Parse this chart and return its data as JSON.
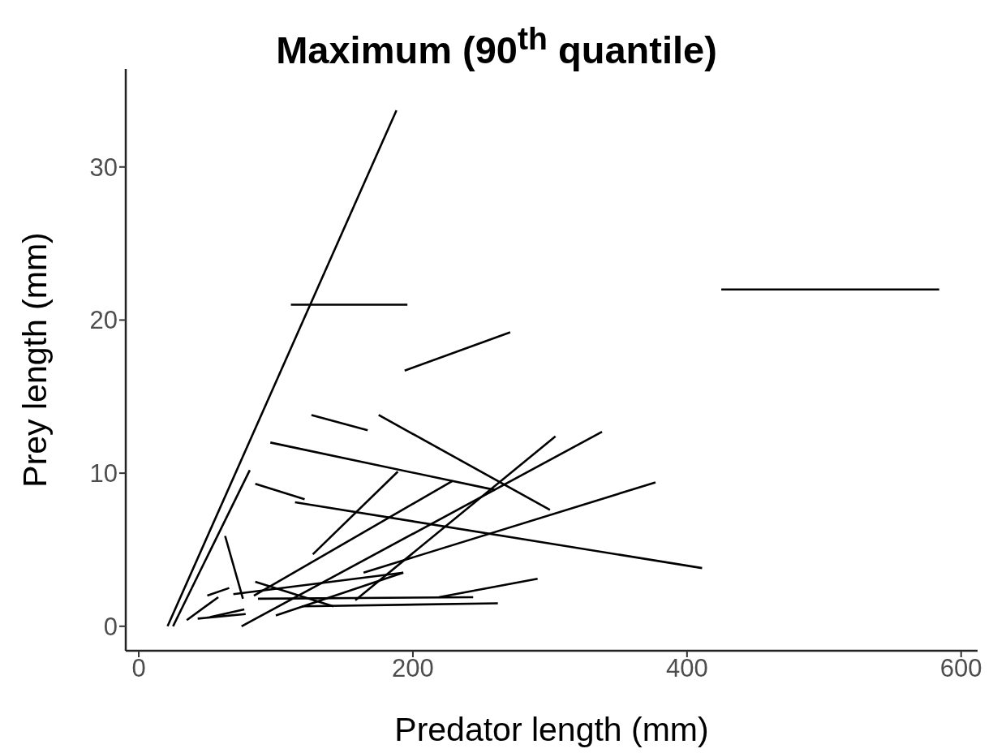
{
  "chart_data": {
    "type": "line",
    "title": "Maximum (90$^{th}$ quantile)",
    "xlabel": "Predator length (mm)",
    "ylabel": "Prey length (mm)",
    "xlim": [
      -9.5,
      612
    ],
    "ylim": [
      -1.6,
      36.4
    ],
    "xticks": [
      0,
      200,
      400,
      600
    ],
    "yticks": [
      0,
      10,
      20,
      30
    ],
    "grid": false,
    "marker": "none",
    "line_style": "solid",
    "series": [
      {
        "color": "#000000",
        "x": [
          21,
          188
        ],
        "values": [
          0,
          33.7
        ]
      },
      {
        "color": "#000000",
        "x": [
          25,
          81
        ],
        "values": [
          0,
          10.2
        ]
      },
      {
        "color": "#000000",
        "x": [
          111,
          196
        ],
        "values": [
          21,
          21
        ]
      },
      {
        "color": "#000000",
        "x": [
          425,
          584
        ],
        "values": [
          22,
          22
        ]
      },
      {
        "color": "#000000",
        "x": [
          194,
          271
        ],
        "values": [
          16.7,
          19.2
        ]
      },
      {
        "color": "#000000",
        "x": [
          126,
          167
        ],
        "values": [
          13.8,
          12.8
        ]
      },
      {
        "color": "#000000",
        "x": [
          175,
          300
        ],
        "values": [
          13.8,
          7.6
        ]
      },
      {
        "color": "#000000",
        "x": [
          96,
          260
        ],
        "values": [
          12,
          8.9
        ]
      },
      {
        "color": "#000000",
        "x": [
          85,
          121
        ],
        "values": [
          9.3,
          8.3
        ]
      },
      {
        "color": "#000000",
        "x": [
          114,
          411
        ],
        "values": [
          8.1,
          3.8
        ]
      },
      {
        "color": "#000000",
        "x": [
          127,
          189
        ],
        "values": [
          4.7,
          10.1
        ]
      },
      {
        "color": "#000000",
        "x": [
          84,
          229
        ],
        "values": [
          2,
          9.5
        ]
      },
      {
        "color": "#000000",
        "x": [
          75,
          338
        ],
        "values": [
          0,
          12.7
        ]
      },
      {
        "color": "#000000",
        "x": [
          158,
          304
        ],
        "values": [
          1.7,
          12.4
        ]
      },
      {
        "color": "#000000",
        "x": [
          63,
          76
        ],
        "values": [
          5.9,
          1.8
        ]
      },
      {
        "color": "#000000",
        "x": [
          50,
          66
        ],
        "values": [
          2,
          2.5
        ]
      },
      {
        "color": "#000000",
        "x": [
          35,
          58
        ],
        "values": [
          0.4,
          1.9
        ]
      },
      {
        "color": "#000000",
        "x": [
          43,
          78
        ],
        "values": [
          0.5,
          0.8
        ]
      },
      {
        "color": "#000000",
        "x": [
          52,
          77
        ],
        "values": [
          0.6,
          1.1
        ]
      },
      {
        "color": "#000000",
        "x": [
          69,
          193
        ],
        "values": [
          2.1,
          3.5
        ]
      },
      {
        "color": "#000000",
        "x": [
          85,
          142
        ],
        "values": [
          2.9,
          1.3
        ]
      },
      {
        "color": "#000000",
        "x": [
          87,
          244
        ],
        "values": [
          1.8,
          1.9
        ]
      },
      {
        "color": "#000000",
        "x": [
          119,
          262
        ],
        "values": [
          1.3,
          1.5
        ]
      },
      {
        "color": "#000000",
        "x": [
          219,
          291
        ],
        "values": [
          1.9,
          3.1
        ]
      },
      {
        "color": "#000000",
        "x": [
          164,
          377
        ],
        "values": [
          3.5,
          9.4
        ]
      },
      {
        "color": "#000000",
        "x": [
          100,
          193
        ],
        "values": [
          0.7,
          3.5
        ]
      }
    ]
  }
}
